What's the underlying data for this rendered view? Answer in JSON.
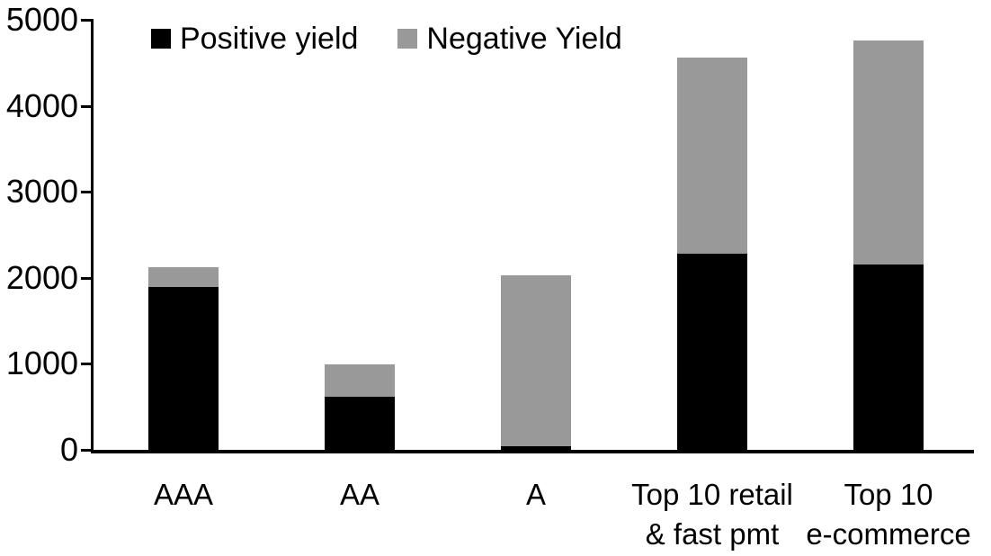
{
  "chart_data": {
    "type": "bar",
    "stacked": true,
    "title": "",
    "xlabel": "",
    "ylabel": "",
    "categories": [
      "AAA",
      "AA",
      "A",
      "Top 10 retail & fast pmt",
      "Top 10 e-commerce"
    ],
    "categories_display": [
      [
        "AAA"
      ],
      [
        "AA"
      ],
      [
        "A"
      ],
      [
        "Top 10 retail",
        "& fast pmt"
      ],
      [
        "Top 10",
        "e-commerce"
      ]
    ],
    "series": [
      {
        "name": "Positive yield",
        "color": "#000000",
        "values": [
          1890,
          620,
          45,
          2280,
          2150
        ]
      },
      {
        "name": "Negative Yield",
        "color": "#999999",
        "values": [
          230,
          380,
          1985,
          2280,
          2600
        ]
      }
    ],
    "totals": [
      2120,
      1000,
      2030,
      4560,
      4750
    ],
    "ylim": [
      0,
      5000
    ],
    "yticks": [
      0,
      1000,
      2000,
      3000,
      4000,
      5000
    ],
    "ytick_labels": [
      "0",
      "1000",
      "2000",
      "3000",
      "4000",
      "5000"
    ],
    "grid": false,
    "legend_position": "top-left-inside",
    "colors": {
      "background": "#ffffff",
      "axis": "#000000",
      "text": "#000000",
      "positive": "#000000",
      "negative": "#999999"
    }
  }
}
